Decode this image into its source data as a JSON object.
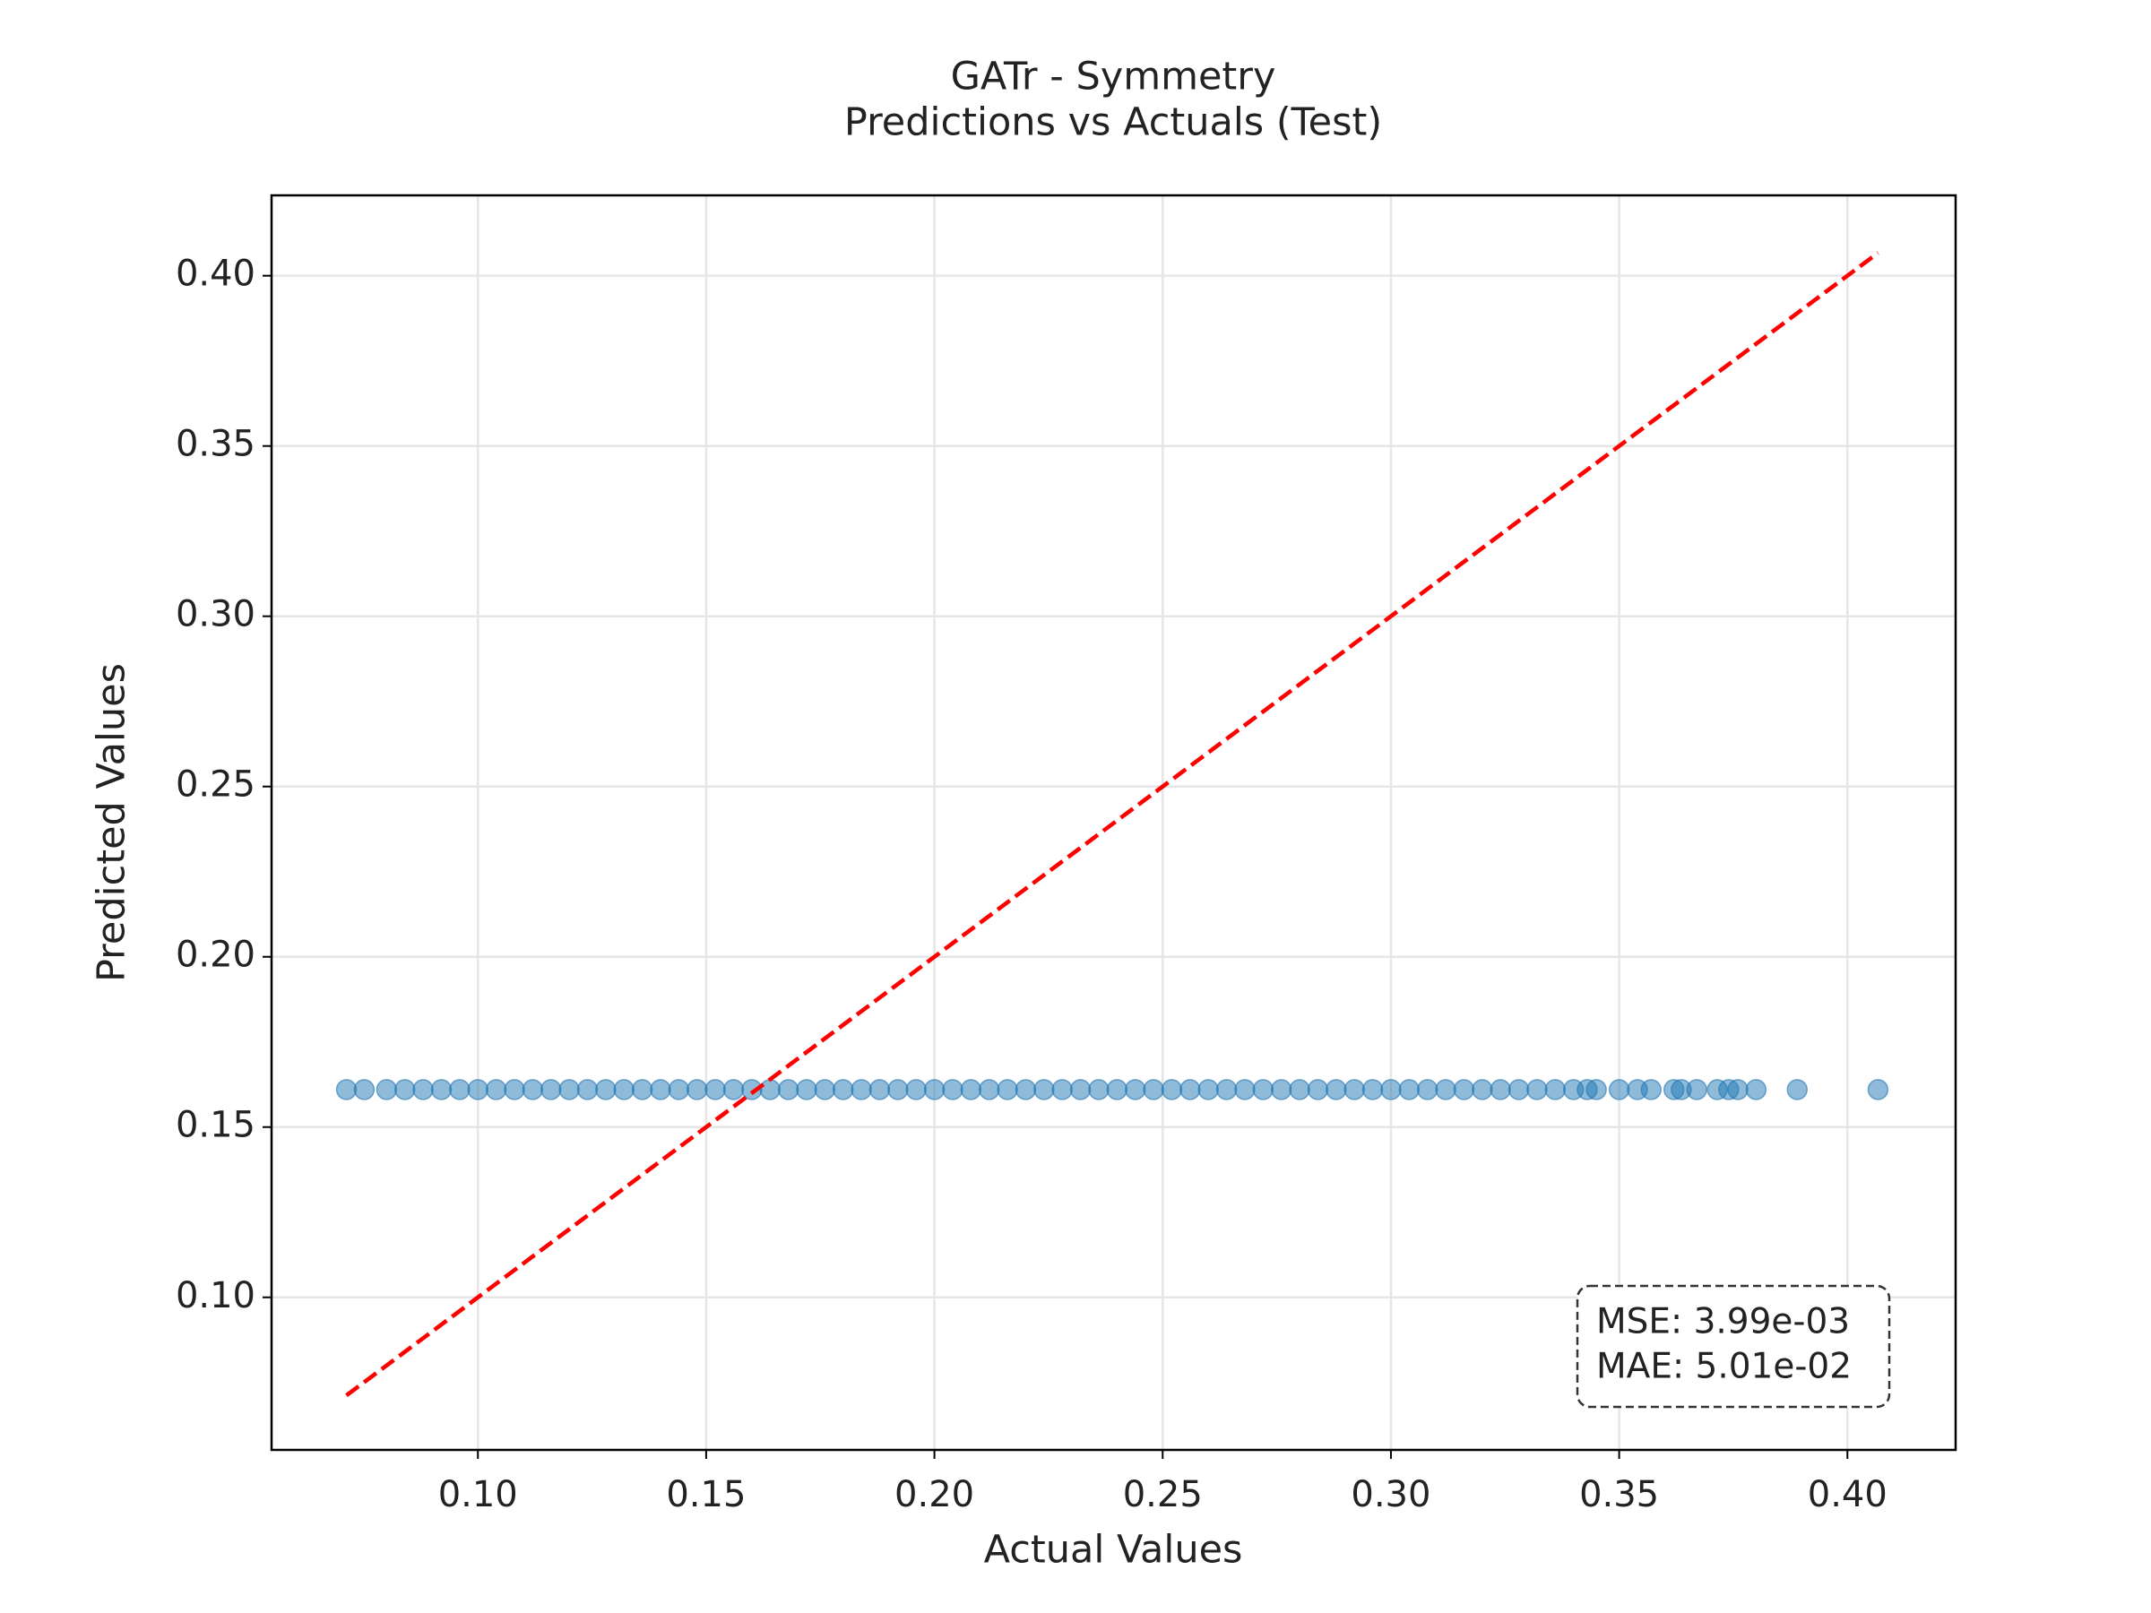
{
  "chart_data": {
    "type": "scatter",
    "title": "GATr - Symmetry",
    "subtitle": "Predictions vs Actuals (Test)",
    "xlabel": "Actual Values",
    "ylabel": "Predicted Values",
    "x": [
      0.0712,
      0.0751,
      0.08,
      0.084,
      0.088,
      0.092,
      0.096,
      0.1,
      0.104,
      0.108,
      0.112,
      0.116,
      0.12,
      0.124,
      0.128,
      0.132,
      0.136,
      0.14,
      0.144,
      0.148,
      0.152,
      0.156,
      0.16,
      0.164,
      0.168,
      0.172,
      0.176,
      0.18,
      0.184,
      0.188,
      0.192,
      0.196,
      0.2,
      0.204,
      0.208,
      0.212,
      0.216,
      0.22,
      0.224,
      0.228,
      0.232,
      0.236,
      0.24,
      0.244,
      0.248,
      0.252,
      0.256,
      0.26,
      0.264,
      0.268,
      0.272,
      0.276,
      0.28,
      0.284,
      0.288,
      0.292,
      0.296,
      0.3,
      0.304,
      0.308,
      0.312,
      0.316,
      0.32,
      0.324,
      0.328,
      0.332,
      0.336,
      0.34,
      0.343,
      0.345,
      0.35,
      0.354,
      0.357,
      0.362,
      0.3636,
      0.367,
      0.3715,
      0.374,
      0.376,
      0.38,
      0.389,
      0.4067
    ],
    "series": [
      {
        "color": "#1f77b4",
        "values": [
          0.161,
          0.161,
          0.161,
          0.161,
          0.161,
          0.161,
          0.161,
          0.161,
          0.161,
          0.161,
          0.161,
          0.161,
          0.161,
          0.161,
          0.161,
          0.161,
          0.161,
          0.161,
          0.161,
          0.161,
          0.161,
          0.161,
          0.161,
          0.161,
          0.161,
          0.161,
          0.161,
          0.161,
          0.161,
          0.161,
          0.161,
          0.161,
          0.161,
          0.161,
          0.161,
          0.161,
          0.161,
          0.161,
          0.161,
          0.161,
          0.161,
          0.161,
          0.161,
          0.161,
          0.161,
          0.161,
          0.161,
          0.161,
          0.161,
          0.161,
          0.161,
          0.161,
          0.161,
          0.161,
          0.161,
          0.161,
          0.161,
          0.161,
          0.161,
          0.161,
          0.161,
          0.161,
          0.161,
          0.161,
          0.161,
          0.161,
          0.161,
          0.161,
          0.161,
          0.161,
          0.161,
          0.161,
          0.161,
          0.161,
          0.161,
          0.161,
          0.161,
          0.161,
          0.161,
          0.161,
          0.161,
          0.161
        ]
      }
    ],
    "reference_line": {
      "x": [
        0.0712,
        0.4067
      ],
      "values": [
        0.0712,
        0.4067
      ],
      "color": "#ff0000",
      "style": "dashed"
    },
    "annotations": [
      "MSE: 3.99e-03",
      "MAE: 5.01e-02"
    ],
    "xlim": [
      0.0548,
      0.4237
    ],
    "ylim": [
      0.0552,
      0.4236
    ],
    "xticks": [
      {
        "value": 0.1,
        "label": "0.10"
      },
      {
        "value": 0.15,
        "label": "0.15"
      },
      {
        "value": 0.2,
        "label": "0.20"
      },
      {
        "value": 0.25,
        "label": "0.25"
      },
      {
        "value": 0.3,
        "label": "0.30"
      },
      {
        "value": 0.35,
        "label": "0.35"
      },
      {
        "value": 0.4,
        "label": "0.40"
      }
    ],
    "yticks": [
      {
        "value": 0.1,
        "label": "0.10"
      },
      {
        "value": 0.15,
        "label": "0.15"
      },
      {
        "value": 0.2,
        "label": "0.20"
      },
      {
        "value": 0.25,
        "label": "0.25"
      },
      {
        "value": 0.3,
        "label": "0.30"
      },
      {
        "value": 0.35,
        "label": "0.35"
      },
      {
        "value": 0.4,
        "label": "0.40"
      }
    ],
    "grid": true
  }
}
